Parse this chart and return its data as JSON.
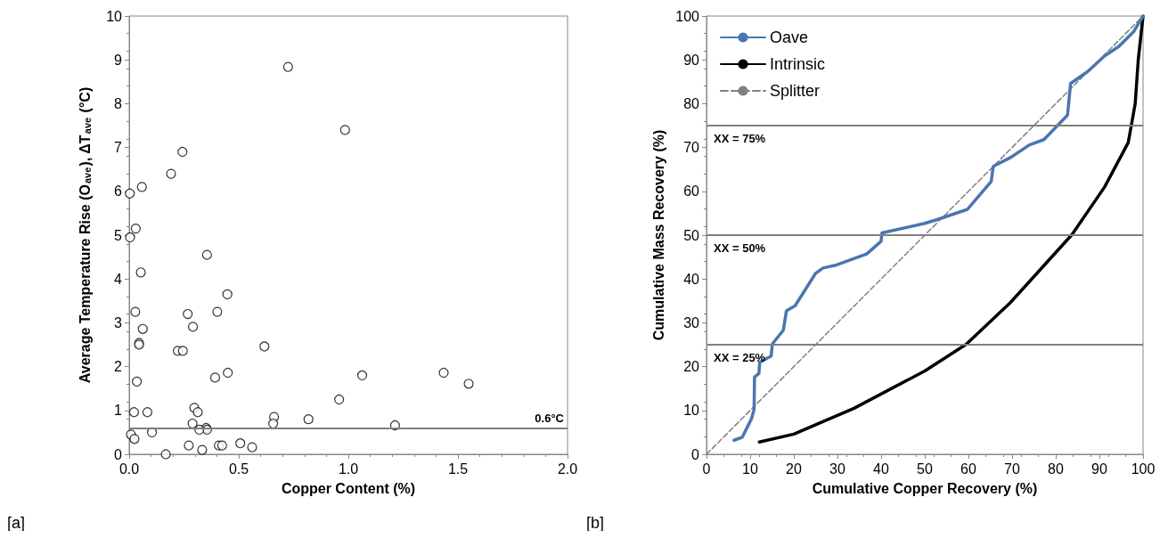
{
  "chart_data": [
    {
      "type": "scatter",
      "xlabel": "Copper Content (%)",
      "ylabel": "Average Temperature Rise (O$_{ave}$), ΔT$_{ave}$ (°C)",
      "annotations": [
        "[a]"
      ],
      "x": [
        0.725,
        0.243,
        0.191,
        0.058,
        0.003,
        0.03,
        0.004,
        0.355,
        0.053,
        0.448,
        0.028,
        0.267,
        0.402,
        0.062,
        0.291,
        0.045,
        0.045,
        0.222,
        0.245,
        0.617,
        0.035,
        0.392,
        0.45,
        0.022,
        0.083,
        0.297,
        0.313,
        0.661,
        0.657,
        0.818,
        0.289,
        0.351,
        0.355,
        0.32,
        0.008,
        0.024,
        0.104,
        0.272,
        0.333,
        0.409,
        0.424,
        0.507,
        0.561,
        0.167,
        0.958,
        0.985,
        1.063,
        1.435,
        1.549,
        1.213
      ],
      "values": [
        8.84,
        6.9,
        6.4,
        6.1,
        5.95,
        5.15,
        4.95,
        4.55,
        4.15,
        3.65,
        3.25,
        3.2,
        3.25,
        2.86,
        2.91,
        2.54,
        2.5,
        2.36,
        2.36,
        2.46,
        1.66,
        1.75,
        1.86,
        0.96,
        0.96,
        1.06,
        0.96,
        0.85,
        0.7,
        0.8,
        0.7,
        0.6,
        0.56,
        0.56,
        0.45,
        0.35,
        0.5,
        0.2,
        0.1,
        0.2,
        0.2,
        0.25,
        0.16,
        0.0,
        1.25,
        7.4,
        1.8,
        1.86,
        1.61,
        0.66
      ],
      "color": "#000000",
      "marker": "circle",
      "xlim": [
        0,
        2
      ],
      "xticks": [
        {
          "value": 0,
          "label": "0.0"
        },
        {
          "value": 0.5,
          "label": "0.5"
        },
        {
          "value": 1,
          "label": "1.0"
        },
        {
          "value": 1.5,
          "label": "1.5"
        },
        {
          "value": 2,
          "label": "2.0"
        }
      ],
      "ylim": [
        0,
        10
      ],
      "yticks": [
        0,
        1,
        2,
        3,
        4,
        5,
        6,
        7,
        8,
        9,
        10
      ],
      "ref_lines": [
        {
          "axis": "y",
          "value": 0.6,
          "label": "0.6°C",
          "color": "#808080"
        }
      ],
      "grid": false,
      "legend": false
    },
    {
      "type": "line",
      "xlabel": "Cumulative Copper Recovery (%)",
      "ylabel": "Cumulative Mass Recovery (%)",
      "annotations": [
        "[b]"
      ],
      "series": [
        {
          "name": "Oave",
          "color": "#4a76b0",
          "x": [
            6.3,
            8.2,
            10.3,
            10.9,
            11.0,
            12.0,
            12.2,
            14.8,
            15.1,
            17.6,
            18.3,
            20.3,
            25.0,
            26.7,
            29.8,
            36.7,
            40.0,
            40.2,
            50.0,
            52.7,
            59.8,
            65.2,
            65.7,
            69.6,
            74.0,
            77.3,
            82.7,
            83.4,
            87.4,
            91.2,
            94.5,
            97.9,
            99.1,
            100
          ],
          "values": [
            3.2,
            3.9,
            8.1,
            10.2,
            17.6,
            18.4,
            21.0,
            22.4,
            25.2,
            28.3,
            32.7,
            33.9,
            41.3,
            42.5,
            43.2,
            45.7,
            48.6,
            50.5,
            52.7,
            53.5,
            55.9,
            62.2,
            65.7,
            67.7,
            70.6,
            71.8,
            77.4,
            84.6,
            87.4,
            90.9,
            93.1,
            96.5,
            98.5,
            100
          ]
        },
        {
          "name": "Intrinsic",
          "color": "#000000",
          "x": [
            12.1,
            20,
            33.8,
            50,
            59.5,
            69.6,
            83.7,
            91.2,
            96.6,
            98.2,
            98.9,
            100
          ],
          "values": [
            2.8,
            4.6,
            10.5,
            19.0,
            25.1,
            34.6,
            50.1,
            61,
            71.1,
            80,
            90,
            100
          ]
        },
        {
          "name": "Splitter",
          "color": "#808080",
          "line_style": "dashed",
          "x": [
            0,
            100
          ],
          "values": [
            0,
            100
          ]
        }
      ],
      "marker": "none",
      "line_style": "solid",
      "xlim": [
        0,
        100
      ],
      "xticks": [
        0,
        10,
        20,
        30,
        40,
        50,
        60,
        70,
        80,
        90,
        100
      ],
      "ylim": [
        0,
        100
      ],
      "yticks": [
        0,
        10,
        20,
        30,
        40,
        50,
        60,
        70,
        80,
        90,
        100
      ],
      "ref_lines": [
        {
          "axis": "y",
          "value": 25,
          "label": "XX = 25%",
          "color": "#808080"
        },
        {
          "axis": "y",
          "value": 50,
          "label": "XX = 50%",
          "color": "#808080"
        },
        {
          "axis": "y",
          "value": 75,
          "label": "XX = 75%",
          "color": "#808080"
        }
      ],
      "grid": false,
      "legend": "top left"
    }
  ]
}
